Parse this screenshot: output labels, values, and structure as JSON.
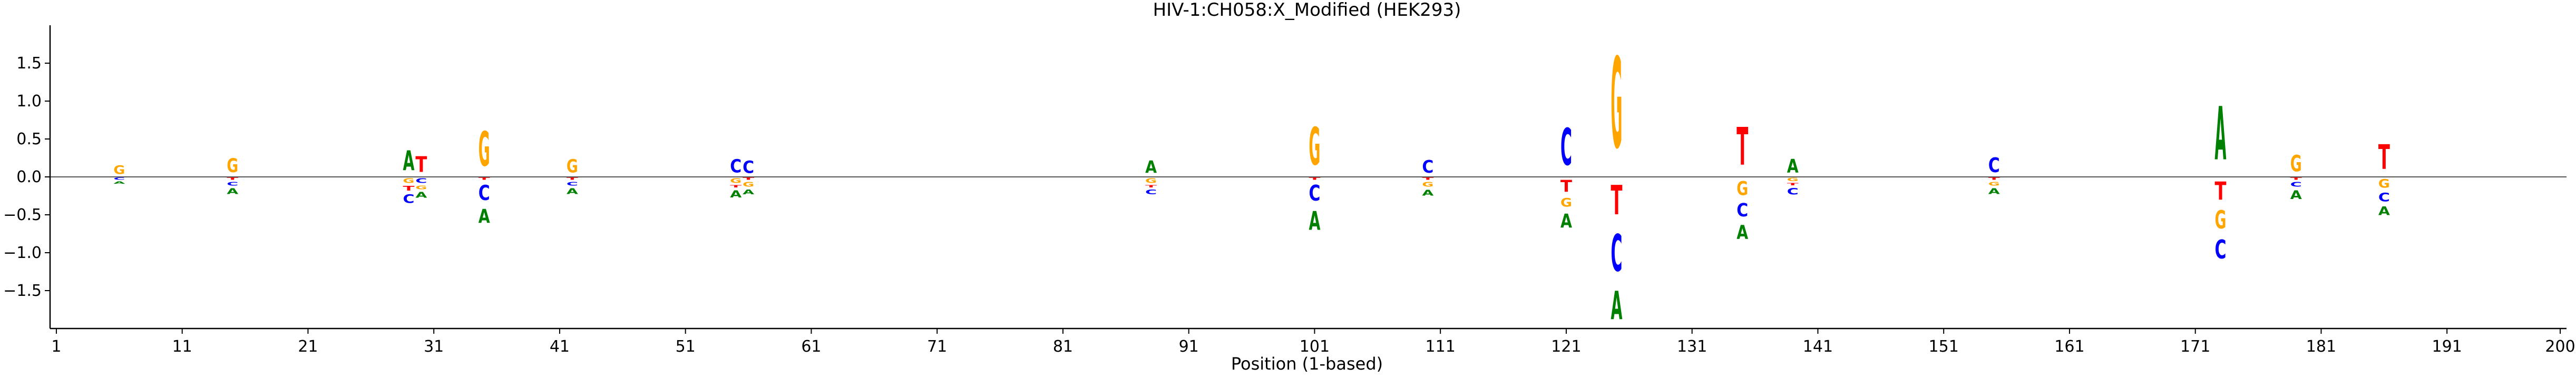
{
  "chart_data": {
    "type": "sequence-logo",
    "title": "HIV-1:CH058:X_Modified  (HEK293)",
    "xlabel": "Position (1-based)",
    "ylabel": "",
    "xlim": [
      0.5,
      200.5
    ],
    "ylim": [
      -2.0,
      2.0
    ],
    "x_ticks": [
      1,
      11,
      21,
      31,
      41,
      51,
      61,
      71,
      81,
      91,
      101,
      111,
      121,
      131,
      141,
      151,
      161,
      171,
      181,
      191,
      200
    ],
    "y_ticks": [
      -1.5,
      -1.0,
      -0.5,
      0.0,
      0.5,
      1.0,
      1.5
    ],
    "y_tick_labels": [
      "−1.5",
      "−1.0",
      "−0.5",
      "0.0",
      "0.5",
      "1.0",
      "1.5"
    ],
    "colors": {
      "A": "#008000",
      "C": "#0000ff",
      "G": "#ffa500",
      "T": "#ff0000"
    },
    "positions": [
      {
        "x": 6,
        "up": [
          [
            "G",
            0.18
          ]
        ],
        "down": [
          [
            "C",
            0.05
          ],
          [
            "A",
            0.05
          ]
        ]
      },
      {
        "x": 15,
        "up": [
          [
            "G",
            0.3
          ]
        ],
        "down": [
          [
            "T",
            0.05
          ],
          [
            "C",
            0.08
          ],
          [
            "A",
            0.12
          ]
        ]
      },
      {
        "x": 29,
        "up": [
          [
            "A",
            0.42
          ]
        ],
        "down": [
          [
            "G",
            0.1
          ],
          [
            "T",
            0.1
          ],
          [
            "C",
            0.18
          ]
        ]
      },
      {
        "x": 30,
        "up": [
          [
            "T",
            0.33
          ]
        ],
        "down": [
          [
            "C",
            0.1
          ],
          [
            "G",
            0.08
          ],
          [
            "A",
            0.12
          ]
        ]
      },
      {
        "x": 35,
        "up": [
          [
            "G",
            0.73
          ]
        ],
        "down": [
          [
            "T",
            0.05
          ],
          [
            "C",
            0.32
          ],
          [
            "A",
            0.3
          ]
        ]
      },
      {
        "x": 42,
        "up": [
          [
            "G",
            0.28
          ]
        ],
        "down": [
          [
            "T",
            0.05
          ],
          [
            "C",
            0.08
          ],
          [
            "A",
            0.12
          ]
        ]
      },
      {
        "x": 55,
        "up": [
          [
            "C",
            0.28
          ]
        ],
        "down": [
          [
            "G",
            0.1
          ],
          [
            "T",
            0.05
          ],
          [
            "A",
            0.15
          ]
        ]
      },
      {
        "x": 56,
        "up": [
          [
            "C",
            0.26
          ]
        ],
        "down": [
          [
            "T",
            0.05
          ],
          [
            "G",
            0.1
          ],
          [
            "A",
            0.1
          ]
        ]
      },
      {
        "x": 88,
        "up": [
          [
            "A",
            0.26
          ]
        ],
        "down": [
          [
            "G",
            0.1
          ],
          [
            "T",
            0.05
          ],
          [
            "C",
            0.1
          ]
        ]
      },
      {
        "x": 101,
        "up": [
          [
            "G",
            0.8
          ]
        ],
        "down": [
          [
            "T",
            0.05
          ],
          [
            "C",
            0.33
          ],
          [
            "A",
            0.4
          ]
        ]
      },
      {
        "x": 110,
        "up": [
          [
            "C",
            0.27
          ]
        ],
        "down": [
          [
            "T",
            0.05
          ],
          [
            "G",
            0.1
          ],
          [
            "A",
            0.12
          ]
        ]
      },
      {
        "x": 121,
        "up": [
          [
            "C",
            0.78
          ]
        ],
        "down": [
          [
            "T",
            0.25
          ],
          [
            "G",
            0.18
          ],
          [
            "A",
            0.3
          ]
        ]
      },
      {
        "x": 125,
        "up": [
          [
            "G",
            1.92
          ]
        ],
        "down": [
          [
            "T",
            0.62
          ],
          [
            "C",
            0.78
          ],
          [
            "A",
            0.6
          ]
        ]
      },
      {
        "x": 135,
        "up": [
          [
            "T",
            0.8
          ]
        ],
        "down": [
          [
            "G",
            0.3
          ],
          [
            "C",
            0.28
          ],
          [
            "A",
            0.3
          ]
        ]
      },
      {
        "x": 139,
        "up": [
          [
            "A",
            0.29
          ]
        ],
        "down": [
          [
            "G",
            0.07
          ],
          [
            "T",
            0.05
          ],
          [
            "C",
            0.14
          ]
        ]
      },
      {
        "x": 155,
        "up": [
          [
            "C",
            0.31
          ]
        ],
        "down": [
          [
            "T",
            0.05
          ],
          [
            "G",
            0.08
          ],
          [
            "A",
            0.12
          ]
        ]
      },
      {
        "x": 173,
        "up": [
          [
            "A",
            1.13
          ]
        ],
        "down": [
          [
            "T",
            0.38
          ],
          [
            "G",
            0.38
          ],
          [
            "C",
            0.4
          ]
        ]
      },
      {
        "x": 179,
        "up": [
          [
            "G",
            0.35
          ]
        ],
        "down": [
          [
            "T",
            0.05
          ],
          [
            "C",
            0.1
          ],
          [
            "A",
            0.18
          ]
        ]
      },
      {
        "x": 186,
        "up": [
          [
            "T",
            0.52
          ]
        ],
        "down": [
          [
            "G",
            0.18
          ],
          [
            "C",
            0.18
          ],
          [
            "A",
            0.18
          ]
        ]
      }
    ]
  }
}
